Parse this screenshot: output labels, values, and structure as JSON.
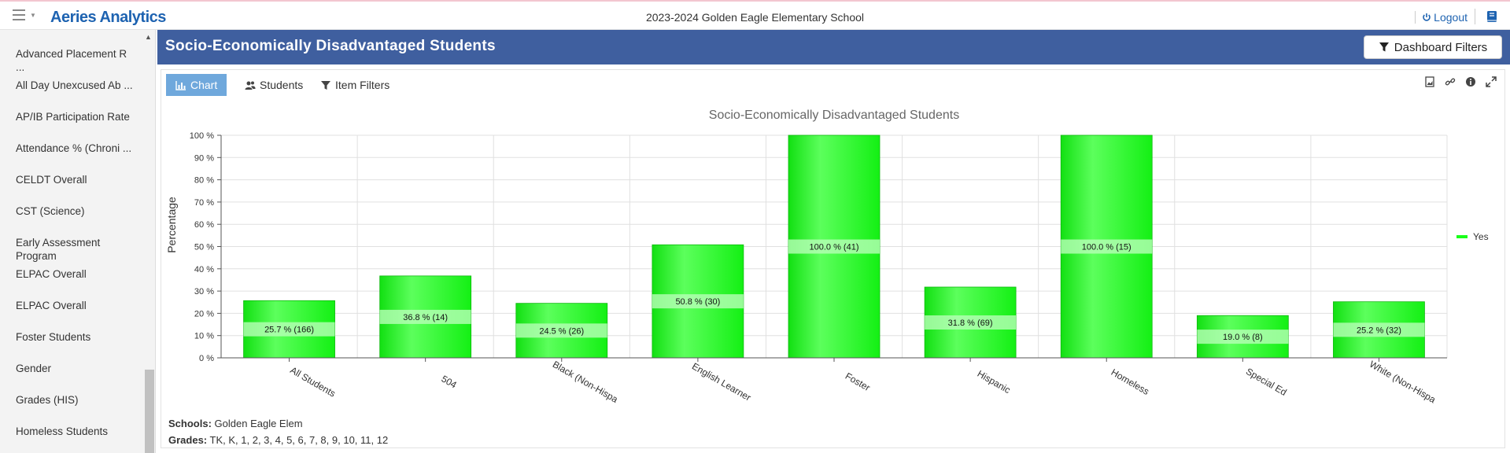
{
  "app": {
    "brand": "Aeries Analytics",
    "school_title": "2023-2024 Golden Eagle Elementary School",
    "logout_label": "Logout"
  },
  "sidebar": {
    "items": [
      {
        "label": "Advanced Placement R ..."
      },
      {
        "label": "All Day Unexcused Ab ..."
      },
      {
        "label": "AP/IB Participation Rate"
      },
      {
        "label": "Attendance % (Chroni ..."
      },
      {
        "label": "CELDT Overall"
      },
      {
        "label": "CST (Science)"
      },
      {
        "label": "Early Assessment Program"
      },
      {
        "label": "ELPAC Overall"
      },
      {
        "label": "ELPAC Overall"
      },
      {
        "label": "Foster Students"
      },
      {
        "label": "Gender"
      },
      {
        "label": "Grades (HIS)"
      },
      {
        "label": "Homeless Students"
      }
    ]
  },
  "header": {
    "title": "Socio-Economically Disadvantaged Students",
    "dashboard_filters_label": "Dashboard Filters"
  },
  "tabs": [
    {
      "label": "Chart",
      "icon": "bar-chart-icon",
      "active": true
    },
    {
      "label": "Students",
      "icon": "users-icon",
      "active": false
    },
    {
      "label": "Item Filters",
      "icon": "filter-icon",
      "active": false
    }
  ],
  "tools": [
    "image-export-icon",
    "link-icon",
    "info-icon",
    "expand-icon"
  ],
  "chart_data": {
    "type": "bar",
    "title": "Socio-Economically Disadvantaged Students",
    "ylabel": "Percentage",
    "xlabel": "",
    "ylim": [
      0,
      100
    ],
    "yticks": [
      "0 %",
      "10 %",
      "20 %",
      "30 %",
      "40 %",
      "50 %",
      "60 %",
      "70 %",
      "80 %",
      "90 %",
      "100 %"
    ],
    "categories": [
      "All Students",
      "504",
      "Black (Non-Hispa",
      "English Learner",
      "Foster",
      "Hispanic",
      "Homeless",
      "Special Ed",
      "White (Non-Hispa"
    ],
    "series": [
      {
        "name": "Yes",
        "values": [
          25.7,
          36.8,
          24.5,
          50.8,
          100.0,
          31.8,
          100.0,
          19.0,
          25.2
        ],
        "labels": [
          "25.7 % (166)",
          "36.8 % (14)",
          "24.5 % (26)",
          "50.8 % (30)",
          "100.0 % (41)",
          "31.8 % (69)",
          "100.0 % (15)",
          "19.0 % (8)",
          "25.2 % (32)"
        ]
      }
    ],
    "legend_position": "right",
    "grid": true,
    "color": "#19ff19"
  },
  "footer": {
    "schools_label": "Schools:",
    "schools_value": "Golden Eagle Elem",
    "grades_label": "Grades:",
    "grades_value": "TK, K, 1, 2, 3, 4, 5, 6, 7, 8, 9, 10, 11, 12"
  }
}
